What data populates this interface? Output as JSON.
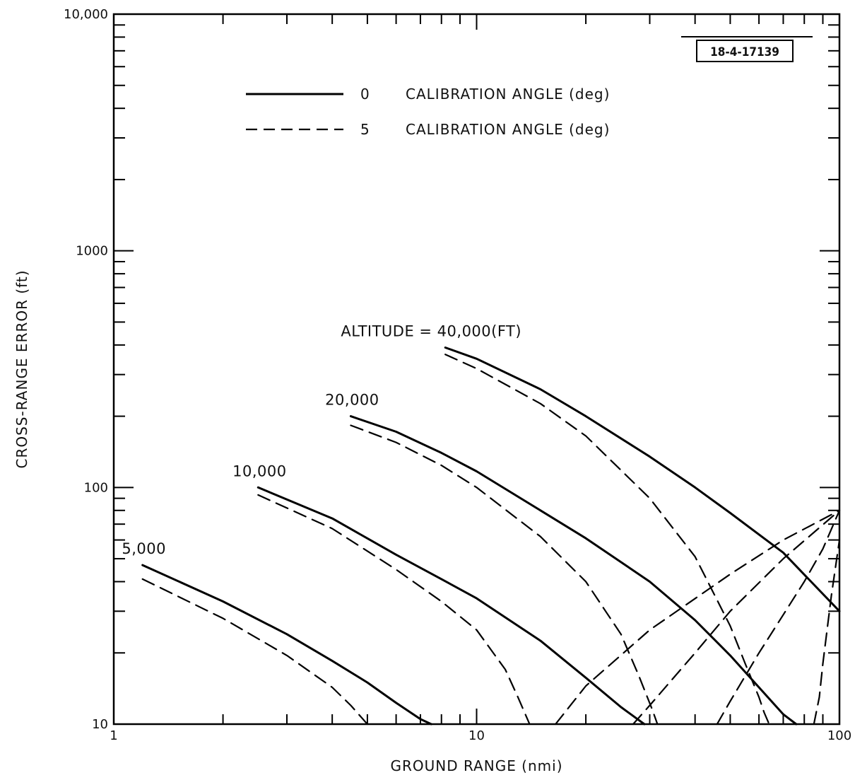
{
  "chart_data": {
    "type": "line",
    "figure_id": "18-4-17139",
    "xlabel": "GROUND RANGE (nmi)",
    "ylabel": "CROSS-RANGE ERROR (ft)",
    "x_scale": "log",
    "y_scale": "log",
    "xlim": [
      1,
      100
    ],
    "ylim": [
      10,
      10000
    ],
    "x_ticks": [
      {
        "value": 1,
        "label": "1"
      },
      {
        "value": 10,
        "label": "10"
      },
      {
        "value": 100,
        "label": "100"
      }
    ],
    "y_ticks": [
      {
        "value": 10,
        "label": "10"
      },
      {
        "value": 100,
        "label": "100"
      },
      {
        "value": 1000,
        "label": "1000"
      },
      {
        "value": 10000,
        "label": "10,000"
      }
    ],
    "grid": false,
    "legend": {
      "placement": "top-left",
      "entries": [
        {
          "style": "solid",
          "value": "0",
          "text": "CALIBRATION ANGLE (deg)"
        },
        {
          "style": "dashed",
          "value": "5",
          "text": "CALIBRATION ANGLE (deg)"
        }
      ]
    },
    "series": [
      {
        "altitude": "5,000",
        "style": "solid",
        "label": "5,000",
        "x": [
          1.2,
          2,
          3,
          4,
          5,
          6,
          7,
          7.5
        ],
        "y": [
          47,
          33,
          24,
          18.5,
          15,
          12.3,
          10.5,
          10
        ]
      },
      {
        "altitude": "5,000",
        "style": "dashed",
        "x": [
          1.2,
          2,
          3,
          4,
          4.5,
          5
        ],
        "y": [
          41,
          28,
          19.5,
          14.3,
          12,
          10
        ]
      },
      {
        "altitude": "10,000",
        "style": "solid",
        "label": "10,000",
        "x": [
          2.5,
          4,
          6,
          8,
          10,
          15,
          20,
          25,
          29
        ],
        "y": [
          100,
          74,
          52,
          41,
          34,
          22.5,
          15.7,
          11.8,
          10
        ]
      },
      {
        "altitude": "10,000",
        "style": "dashed",
        "x": [
          2.5,
          4,
          6,
          8,
          10,
          12,
          13,
          14
        ],
        "y": [
          93,
          67,
          45,
          33,
          25,
          17,
          13,
          10
        ]
      },
      {
        "altitude": "10,000",
        "style": "dashed",
        "x": [
          16.5,
          20,
          30,
          50,
          70,
          100
        ],
        "y": [
          10,
          14.5,
          25,
          43,
          60,
          80
        ]
      },
      {
        "altitude": "20,000",
        "style": "solid",
        "label": "20,000",
        "x": [
          4.5,
          6,
          8,
          10,
          15,
          20,
          30,
          40,
          50,
          60,
          70,
          76
        ],
        "y": [
          200,
          172,
          140,
          117,
          80,
          61,
          40,
          27.5,
          19.5,
          14.3,
          11,
          10
        ]
      },
      {
        "altitude": "20,000",
        "style": "dashed",
        "x": [
          4.5,
          6,
          8,
          10,
          15,
          20,
          25,
          28,
          30.5,
          31.5
        ],
        "y": [
          183,
          155,
          124,
          100,
          62,
          40,
          24,
          16,
          11.5,
          10
        ]
      },
      {
        "altitude": "20,000",
        "style": "dashed",
        "x": [
          27,
          30,
          40,
          50,
          70,
          100
        ],
        "y": [
          10,
          12,
          20,
          30,
          50,
          80
        ]
      },
      {
        "altitude": "40,000",
        "style": "solid",
        "label": "ALTITUDE = 40,000(FT)",
        "x": [
          8.2,
          10,
          15,
          20,
          30,
          40,
          50,
          70,
          100
        ],
        "y": [
          390,
          350,
          260,
          200,
          135,
          100,
          78,
          53,
          30
        ]
      },
      {
        "altitude": "40,000",
        "style": "dashed",
        "x": [
          8.2,
          10,
          15,
          20,
          30,
          40,
          50,
          55,
          60,
          62,
          64
        ],
        "y": [
          365,
          318,
          226,
          165,
          90,
          51,
          26,
          18,
          13,
          11.2,
          10
        ]
      },
      {
        "altitude": "40,000",
        "style": "dashed",
        "x": [
          46,
          50,
          60,
          70,
          80,
          90,
          100
        ],
        "y": [
          10,
          12.5,
          20,
          29,
          40,
          55,
          80
        ]
      },
      {
        "altitude": "40,000",
        "style": "dashed",
        "x": [
          85,
          88,
          90,
          95,
          100
        ],
        "y": [
          10,
          13,
          18,
          35,
          60
        ]
      }
    ]
  }
}
